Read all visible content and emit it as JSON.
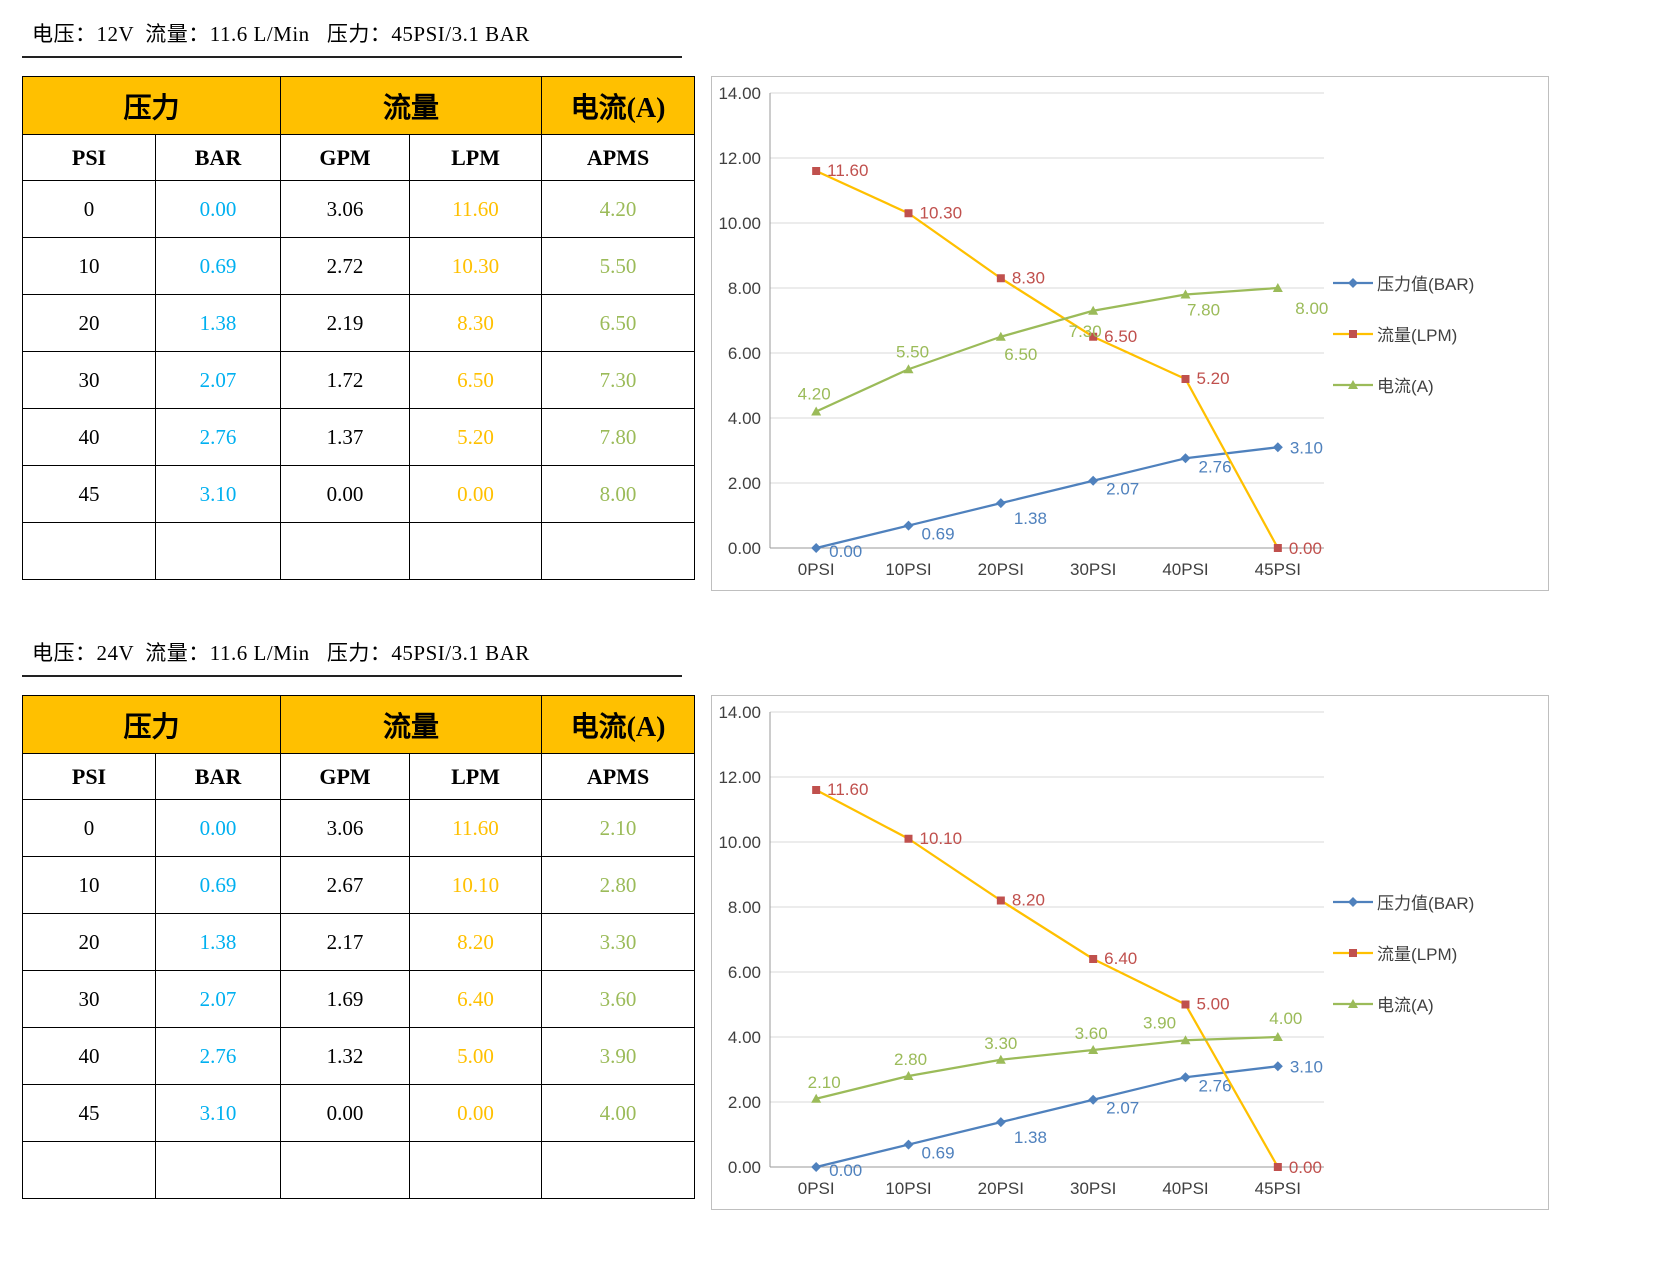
{
  "colors": {
    "table_header_bg": "#FFC000",
    "pressure_bar_text": "#00B0F0",
    "flow_lpm_text": "#FFC000",
    "current_text": "#9BBB59",
    "series_pressure": "#4F81BD",
    "series_flow_line": "#FFC000",
    "series_flow_marker": "#C0504D",
    "series_current": "#9BBB59",
    "chart_border": "#BFBFBF"
  },
  "table_column_colors": [
    "#000000",
    "#00B0F0",
    "#000000",
    "#FFC000",
    "#9BBB59"
  ],
  "sections": [
    {
      "header": "电压：12V  流量：11.6 L/Min   压力：45PSI/3.1 BAR",
      "table": {
        "group_headers": [
          "压力",
          "流量",
          "电流(A)"
        ],
        "col_headers": [
          "PSI",
          "BAR",
          "GPM",
          "LPM",
          "APMS"
        ],
        "rows": [
          [
            "0",
            "0.00",
            "3.06",
            "11.60",
            "4.20"
          ],
          [
            "10",
            "0.69",
            "2.72",
            "10.30",
            "5.50"
          ],
          [
            "20",
            "1.38",
            "2.19",
            "8.30",
            "6.50"
          ],
          [
            "30",
            "2.07",
            "1.72",
            "6.50",
            "7.30"
          ],
          [
            "40",
            "2.76",
            "1.37",
            "5.20",
            "7.80"
          ],
          [
            "45",
            "3.10",
            "0.00",
            "0.00",
            "8.00"
          ],
          [
            "",
            "",
            "",
            "",
            ""
          ]
        ]
      }
    },
    {
      "header": "电压：24V  流量：11.6 L/Min   压力：45PSI/3.1 BAR",
      "table": {
        "group_headers": [
          "压力",
          "流量",
          "电流(A)"
        ],
        "col_headers": [
          "PSI",
          "BAR",
          "GPM",
          "LPM",
          "APMS"
        ],
        "rows": [
          [
            "0",
            "0.00",
            "3.06",
            "11.60",
            "2.10"
          ],
          [
            "10",
            "0.69",
            "2.67",
            "10.10",
            "2.80"
          ],
          [
            "20",
            "1.38",
            "2.17",
            "8.20",
            "3.30"
          ],
          [
            "30",
            "2.07",
            "1.69",
            "6.40",
            "3.60"
          ],
          [
            "40",
            "2.76",
            "1.32",
            "5.00",
            "3.90"
          ],
          [
            "45",
            "3.10",
            "0.00",
            "0.00",
            "4.00"
          ],
          [
            "",
            "",
            "",
            "",
            ""
          ]
        ]
      }
    }
  ],
  "chart_data": [
    {
      "type": "line",
      "title": "",
      "categories": [
        "0PSI",
        "10PSI",
        "20PSI",
        "30PSI",
        "40PSI",
        "45PSI"
      ],
      "ylim": [
        0,
        14
      ],
      "ytick_step": 2,
      "grid": true,
      "legend_position": "right",
      "series": [
        {
          "name": "压力值(BAR)",
          "values": [
            0.0,
            0.69,
            1.38,
            2.07,
            2.76,
            3.1
          ],
          "color": "#4F81BD",
          "marker": "diamond"
        },
        {
          "name": "流量(LPM)",
          "values": [
            11.6,
            10.3,
            8.3,
            6.5,
            5.2,
            0.0
          ],
          "color": "#FFC000",
          "marker": "square",
          "marker_color": "#C0504D",
          "label_color": "#C0504D"
        },
        {
          "name": "电流(A)",
          "values": [
            4.2,
            5.5,
            6.5,
            7.3,
            7.8,
            8.0
          ],
          "color": "#9BBB59",
          "marker": "triangle"
        }
      ]
    },
    {
      "type": "line",
      "title": "",
      "categories": [
        "0PSI",
        "10PSI",
        "20PSI",
        "30PSI",
        "40PSI",
        "45PSI"
      ],
      "ylim": [
        0,
        14
      ],
      "ytick_step": 2,
      "grid": true,
      "legend_position": "right",
      "series": [
        {
          "name": "压力值(BAR)",
          "values": [
            0.0,
            0.69,
            1.38,
            2.07,
            2.76,
            3.1
          ],
          "color": "#4F81BD",
          "marker": "diamond"
        },
        {
          "name": "流量(LPM)",
          "values": [
            11.6,
            10.1,
            8.2,
            6.4,
            5.0,
            0.0
          ],
          "color": "#FFC000",
          "marker": "square",
          "marker_color": "#C0504D",
          "label_color": "#C0504D"
        },
        {
          "name": "电流(A)",
          "values": [
            2.1,
            2.8,
            3.3,
            3.6,
            3.9,
            4.0
          ],
          "color": "#9BBB59",
          "marker": "triangle"
        }
      ]
    }
  ]
}
